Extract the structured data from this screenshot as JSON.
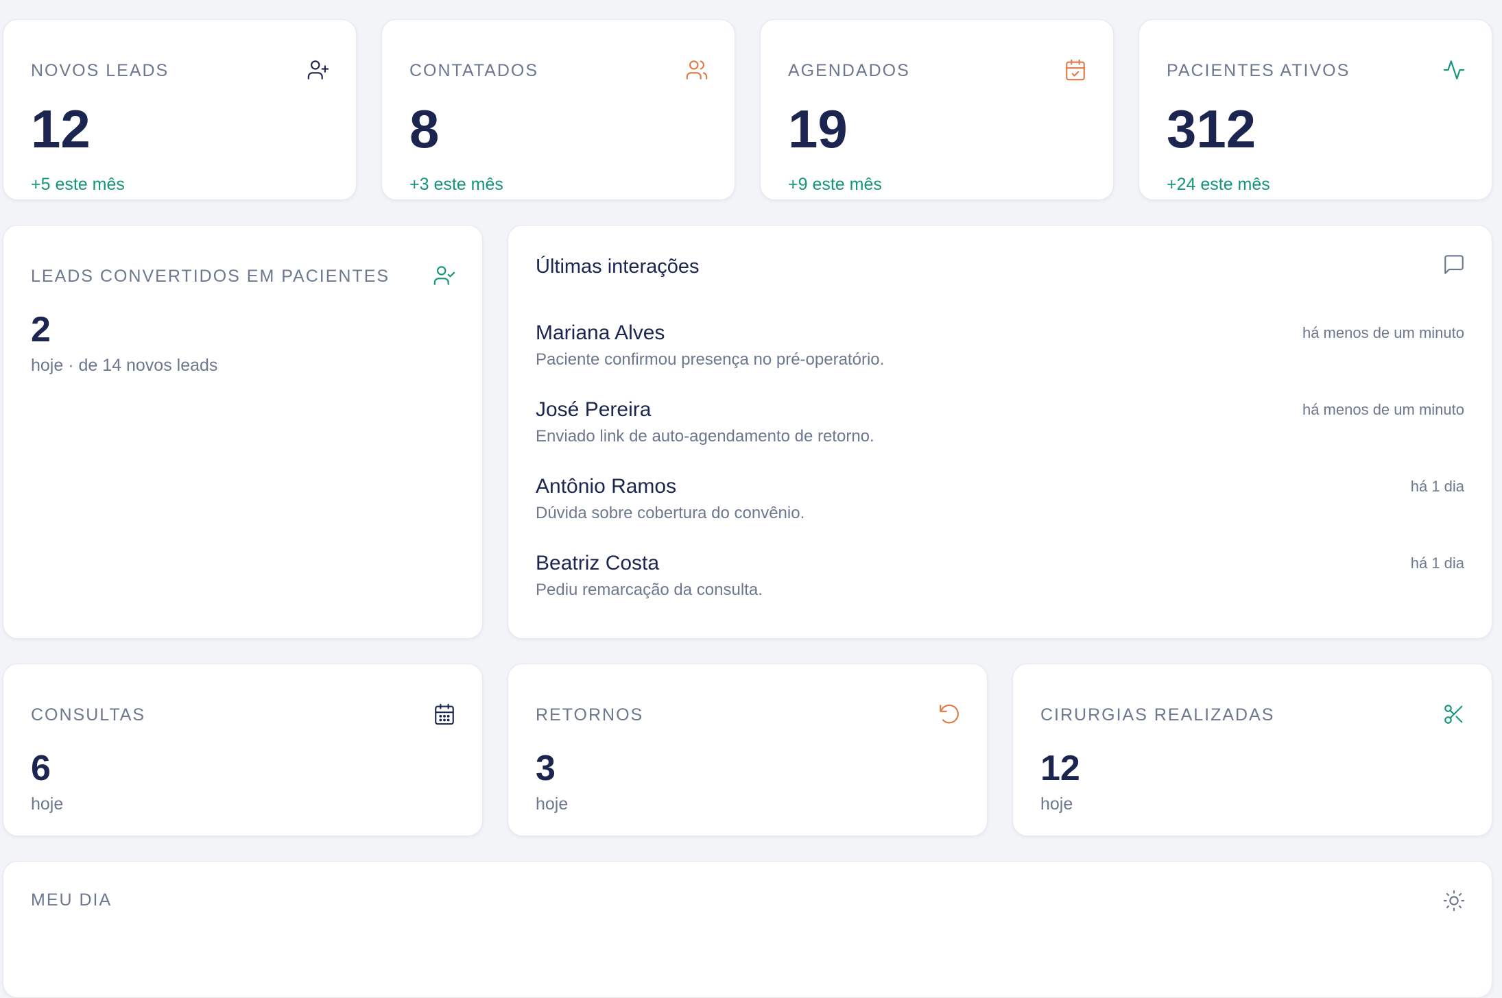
{
  "colors": {
    "accent_green": "#14957a",
    "accent_orange": "#e07a44",
    "navy": "#1b2550",
    "muted": "#6c7790"
  },
  "top_stats": [
    {
      "label": "NOVOS LEADS",
      "value": "12",
      "delta": "+5 este mês",
      "icon": "user-plus-icon"
    },
    {
      "label": "CONTATADOS",
      "value": "8",
      "delta": "+3 este mês",
      "icon": "users-icon"
    },
    {
      "label": "AGENDADOS",
      "value": "19",
      "delta": "+9 este mês",
      "icon": "calendar-check-icon"
    },
    {
      "label": "PACIENTES ATIVOS",
      "value": "312",
      "delta": "+24 este mês",
      "icon": "activity-icon"
    }
  ],
  "converted": {
    "label": "LEADS CONVERTIDOS EM PACIENTES",
    "value": "2",
    "sub": "hoje · de 14 novos leads",
    "icon": "user-check-icon"
  },
  "interactions": {
    "title": "Últimas interações",
    "icon": "message-square-icon",
    "items": [
      {
        "name": "Mariana Alves",
        "text": "Paciente confirmou presença no pré-operatório.",
        "time": "há menos de um minuto"
      },
      {
        "name": "José Pereira",
        "text": "Enviado link de auto-agendamento de retorno.",
        "time": "há menos de um minuto"
      },
      {
        "name": "Antônio Ramos",
        "text": "Dúvida sobre cobertura do convênio.",
        "time": "há 1 dia"
      },
      {
        "name": "Beatriz Costa",
        "text": "Pediu remarcação da consulta.",
        "time": "há 1 dia"
      }
    ]
  },
  "day_stats": [
    {
      "label": "CONSULTAS",
      "value": "6",
      "sub": "hoje",
      "icon": "calendar-icon"
    },
    {
      "label": "RETORNOS",
      "value": "3",
      "sub": "hoje",
      "icon": "rotate-ccw-icon"
    },
    {
      "label": "CIRURGIAS REALIZADAS",
      "value": "12",
      "sub": "hoje",
      "icon": "scissors-icon"
    }
  ],
  "my_day": {
    "label": "MEU DIA",
    "icon": "sun-icon"
  }
}
